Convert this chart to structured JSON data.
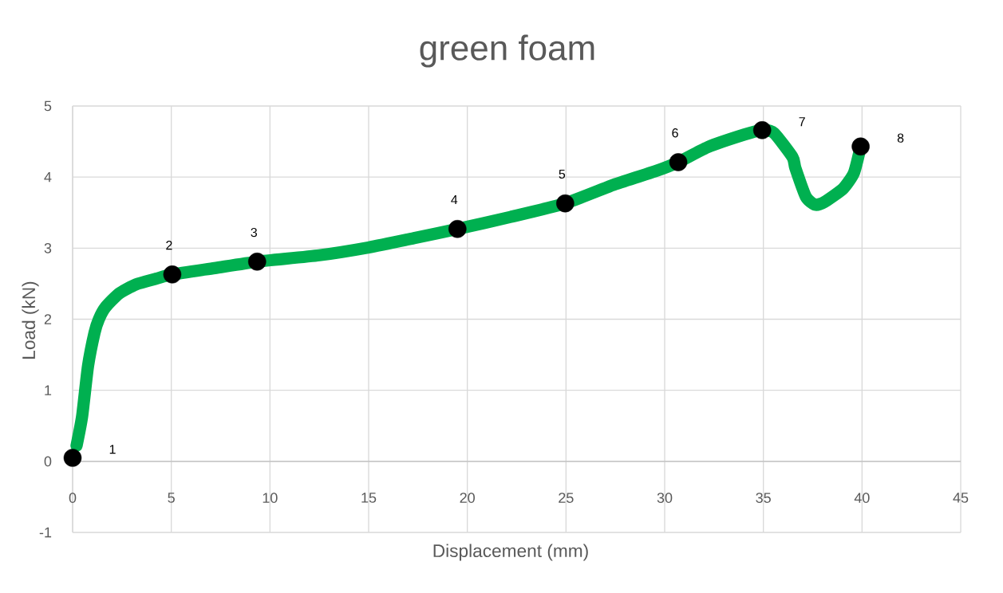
{
  "chart_data": {
    "type": "line",
    "title": "green foam",
    "xlabel": "Displacement (mm)",
    "ylabel": "Load (kN)",
    "xlim": [
      0,
      45
    ],
    "ylim": [
      -1,
      5
    ],
    "xticks": [
      0,
      5,
      10,
      15,
      20,
      25,
      30,
      35,
      40,
      45
    ],
    "yticks": [
      -1,
      0,
      1,
      2,
      3,
      4,
      5
    ],
    "grid": true,
    "series": [
      {
        "color": "#00b050",
        "marker": "none",
        "line_style": "solid",
        "x": [
          0.2,
          0.48,
          0.78,
          1.11,
          1.33,
          1.67,
          2.35,
          3.21,
          4.23,
          5.05,
          7.2,
          9.35,
          12.5,
          15.0,
          17.3,
          19.5,
          22.2,
          24.96,
          27.5,
          29.5,
          30.69,
          32.17,
          34.06,
          34.94,
          35.54,
          36.48,
          36.62,
          37.16,
          37.63,
          38.1,
          39.05,
          39.59,
          39.93
        ],
        "values": [
          0.22,
          0.63,
          1.34,
          1.81,
          2.0,
          2.17,
          2.36,
          2.49,
          2.57,
          2.63,
          2.72,
          2.81,
          2.9,
          3.01,
          3.14,
          3.27,
          3.44,
          3.63,
          3.9,
          4.08,
          4.21,
          4.42,
          4.6,
          4.66,
          4.62,
          4.28,
          4.13,
          3.72,
          3.61,
          3.65,
          3.84,
          4.06,
          4.43
        ]
      },
      {
        "type": "scatter",
        "color": "#000000",
        "marker": "circle",
        "x": [
          0,
          5.05,
          9.35,
          19.5,
          24.96,
          30.69,
          34.94,
          39.93
        ],
        "values": [
          0.05,
          2.63,
          2.81,
          3.27,
          3.63,
          4.21,
          4.66,
          4.43
        ]
      }
    ],
    "annotations": [
      {
        "text": "1",
        "x": 0,
        "y": 0.05
      },
      {
        "text": "2",
        "x": 5.05,
        "y": 2.63
      },
      {
        "text": "3",
        "x": 9.35,
        "y": 2.81
      },
      {
        "text": "4",
        "x": 19.5,
        "y": 3.27
      },
      {
        "text": "5",
        "x": 24.96,
        "y": 3.63
      },
      {
        "text": "6",
        "x": 30.69,
        "y": 4.21
      },
      {
        "text": "7",
        "x": 34.94,
        "y": 4.66
      },
      {
        "text": "8",
        "x": 39.93,
        "y": 4.43
      }
    ]
  }
}
